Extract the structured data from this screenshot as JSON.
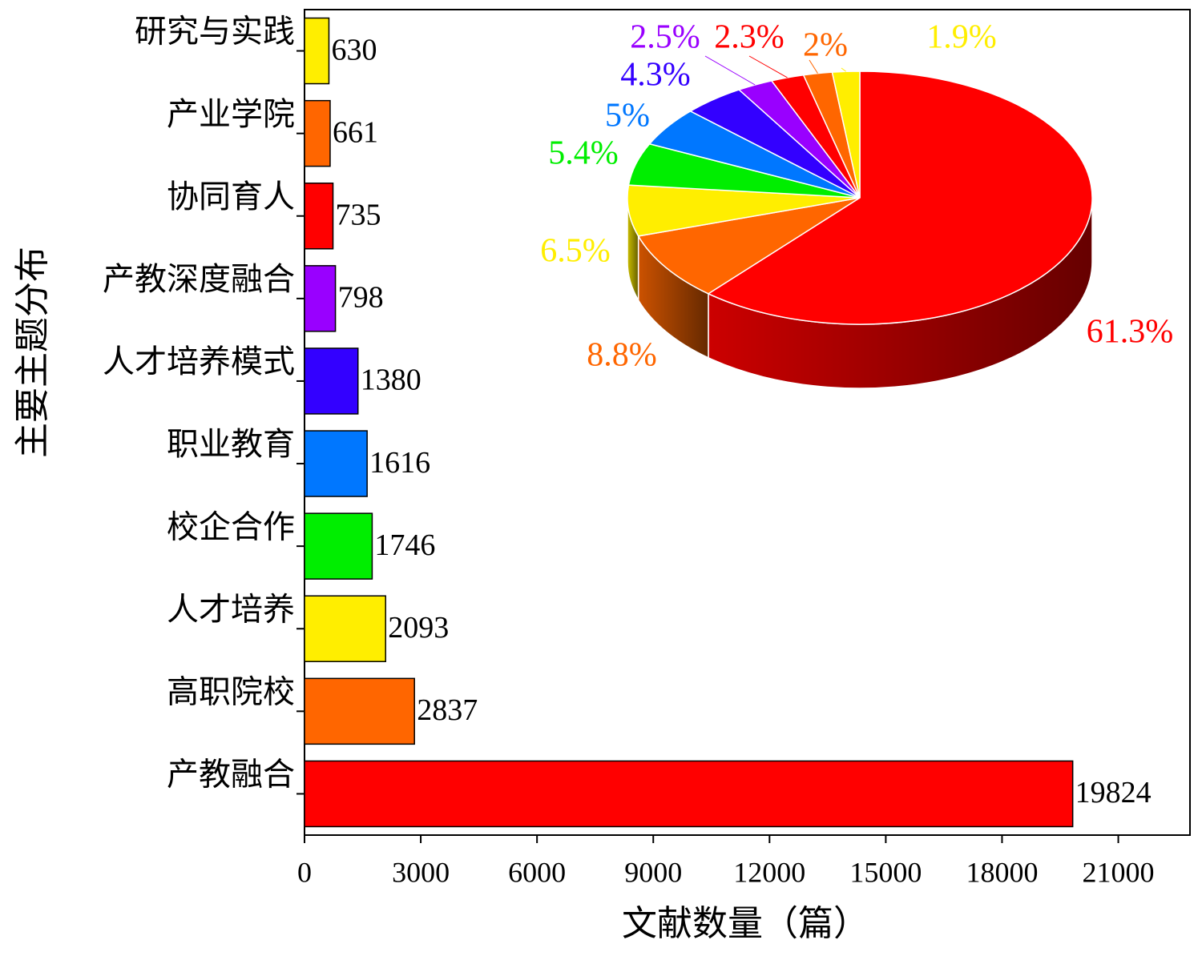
{
  "chart_data": [
    {
      "type": "barh",
      "ylabel": "主要主题分布",
      "xlabel": "文献数量（篇）",
      "categories": [
        "产教融合",
        "高职院校",
        "人才培养",
        "校企合作",
        "职业教育",
        "人才培养模式",
        "产教深度融合",
        "协同育人",
        "产业学院",
        "研究与实践"
      ],
      "values": [
        19824,
        2837,
        2093,
        1746,
        1616,
        1380,
        798,
        735,
        661,
        630
      ],
      "colors": [
        "#ff0000",
        "#ff6600",
        "#ffee00",
        "#00ee00",
        "#0077ff",
        "#3300ff",
        "#9900ff",
        "#ff0000",
        "#ff6600",
        "#ffee00"
      ],
      "xlim": [
        0,
        22850
      ],
      "xticks": [
        0,
        3000,
        6000,
        9000,
        12000,
        15000,
        18000,
        21000
      ]
    },
    {
      "type": "pie3d",
      "values": [
        61.3,
        8.8,
        6.5,
        5.4,
        5,
        4.3,
        2.5,
        2.3,
        2,
        1.9
      ],
      "value_labels": [
        "61.3%",
        "8.8%",
        "6.5%",
        "5.4%",
        "5%",
        "4.3%",
        "2.5%",
        "2.3%",
        "2%",
        "1.9%"
      ],
      "colors": [
        "#ff0000",
        "#ff6600",
        "#ffee00",
        "#00ee00",
        "#0077ff",
        "#3300ff",
        "#9900ff",
        "#ff0000",
        "#ff6600",
        "#ffee00"
      ]
    }
  ]
}
